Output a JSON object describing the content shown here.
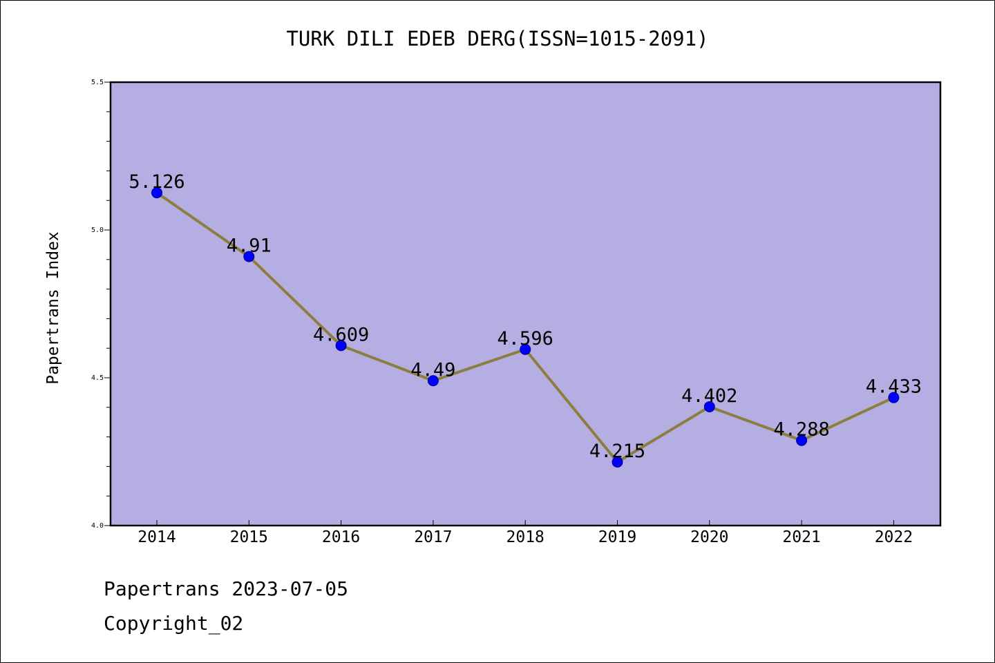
{
  "chart_data": {
    "type": "line",
    "title": "TURK DILI EDEB DERG(ISSN=1015-2091)",
    "ylabel": "Papertrans Index",
    "xlabel": "",
    "categories": [
      "2014",
      "2015",
      "2016",
      "2017",
      "2018",
      "2019",
      "2020",
      "2021",
      "2022"
    ],
    "series": [
      {
        "values": [
          5.126,
          4.91,
          4.609,
          4.49,
          4.596,
          4.215,
          4.402,
          4.288,
          4.433
        ],
        "labels": [
          "5.126",
          "4.91",
          "4.609",
          "4.49",
          "4.596",
          "4.215",
          "4.402",
          "4.288",
          "4.433"
        ]
      }
    ],
    "ylim": [
      4.0,
      5.5
    ],
    "yticks": [
      "4.0",
      "4.5",
      "5.0",
      "5.5"
    ],
    "grid": false,
    "colors": {
      "plot_background": "#b4aee2",
      "line": "#8c7e3e",
      "marker": "#0000ff"
    }
  },
  "footer": {
    "source": "Papertrans 2023-07-05",
    "copyright": "Copyright_02"
  }
}
